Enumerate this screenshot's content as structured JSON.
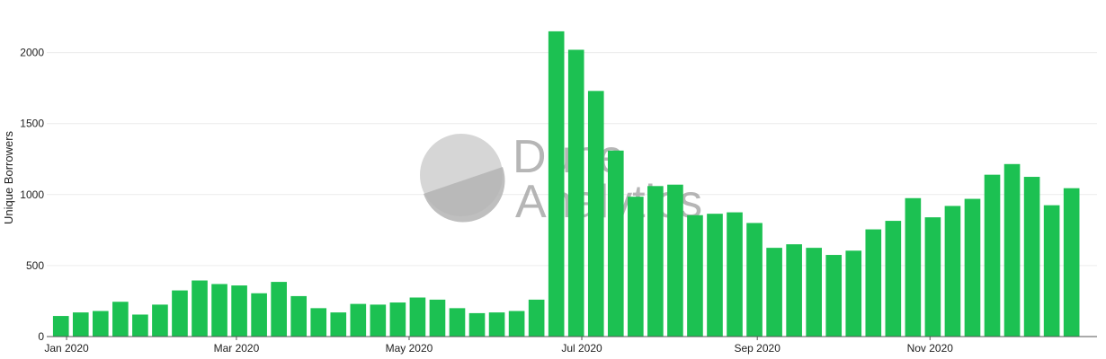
{
  "chart_data": {
    "type": "bar",
    "ylabel": "Unique Borrowers",
    "ylim": [
      0,
      2320
    ],
    "yticks": [
      0,
      500,
      1000,
      1500,
      2000
    ],
    "ytick_labels": [
      "0",
      "500",
      "1000",
      "1500",
      "2000"
    ],
    "xlim": [
      "2019-12-25",
      "2020-12-30"
    ],
    "xticks": [
      "2020-01-01",
      "2020-03-01",
      "2020-05-01",
      "2020-07-01",
      "2020-09-01",
      "2020-11-01"
    ],
    "xtick_labels": [
      "Jan 2020",
      "Mar 2020",
      "May 2020",
      "Jul 2020",
      "Sep 2020",
      "Nov 2020"
    ],
    "grid": true,
    "legend": "none",
    "bar_color": "#1cc152",
    "x": [
      "2019-12-30",
      "2020-01-06",
      "2020-01-13",
      "2020-01-20",
      "2020-01-27",
      "2020-02-03",
      "2020-02-10",
      "2020-02-17",
      "2020-02-24",
      "2020-03-02",
      "2020-03-09",
      "2020-03-16",
      "2020-03-23",
      "2020-03-30",
      "2020-04-06",
      "2020-04-13",
      "2020-04-20",
      "2020-04-27",
      "2020-05-04",
      "2020-05-11",
      "2020-05-18",
      "2020-05-25",
      "2020-06-01",
      "2020-06-08",
      "2020-06-15",
      "2020-06-22",
      "2020-06-29",
      "2020-07-06",
      "2020-07-13",
      "2020-07-20",
      "2020-07-27",
      "2020-08-03",
      "2020-08-10",
      "2020-08-17",
      "2020-08-24",
      "2020-08-31",
      "2020-09-07",
      "2020-09-14",
      "2020-09-21",
      "2020-09-28",
      "2020-10-05",
      "2020-10-12",
      "2020-10-19",
      "2020-10-26",
      "2020-11-02",
      "2020-11-09",
      "2020-11-16",
      "2020-11-23",
      "2020-11-30",
      "2020-12-07",
      "2020-12-14",
      "2020-12-21"
    ],
    "values": [
      145,
      170,
      180,
      245,
      155,
      225,
      325,
      395,
      370,
      360,
      305,
      385,
      285,
      200,
      170,
      230,
      225,
      240,
      275,
      260,
      200,
      165,
      170,
      180,
      260,
      2150,
      2020,
      1730,
      1310,
      985,
      1060,
      1070,
      855,
      865,
      875,
      800,
      625,
      650,
      625,
      575,
      605,
      755,
      815,
      975,
      840,
      920,
      970,
      1140,
      1215,
      1125,
      925,
      1045
    ]
  },
  "watermark": {
    "line1": "Dune",
    "line2": "Analytics",
    "circle_color": "#cfcfcf",
    "circle_shade": "#b4b4b4"
  },
  "colors": {
    "grid": "#ececec",
    "axis": "#555555"
  }
}
